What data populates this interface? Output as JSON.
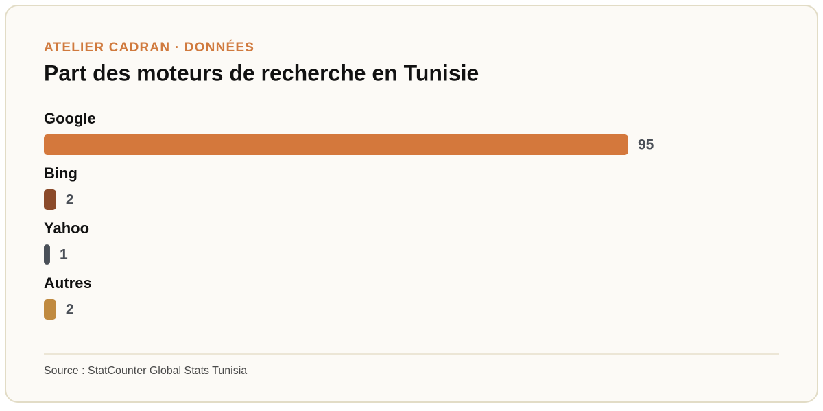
{
  "chart_data": {
    "type": "bar",
    "orientation": "horizontal",
    "kicker": "ATELIER CADRAN · DONNÉES",
    "title": "Part des moteurs de recherche en Tunisie",
    "categories": [
      "Google",
      "Bing",
      "Yahoo",
      "Autres"
    ],
    "values": [
      95,
      2,
      1,
      2
    ],
    "colors": [
      "#d4783c",
      "#8b4a2a",
      "#4a5058",
      "#c08a40"
    ],
    "source": "Source : StatCounter Global Stats Tunisia"
  }
}
